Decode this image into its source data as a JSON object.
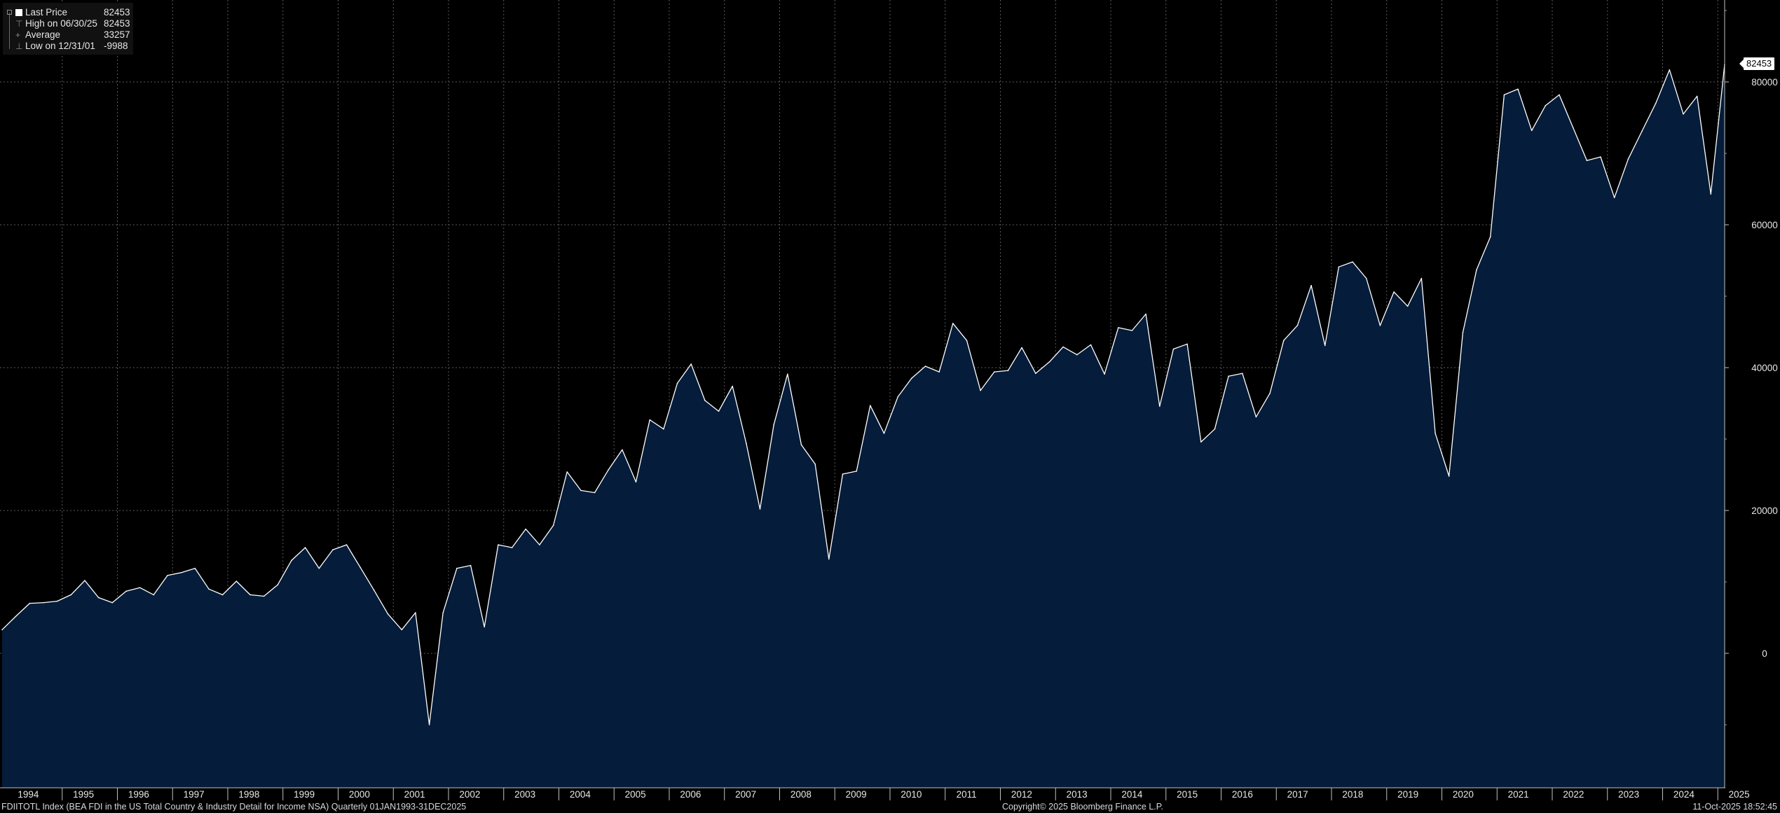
{
  "legend": {
    "rows": [
      {
        "label": "Last Price",
        "value": "82453",
        "icon": "white-square"
      },
      {
        "label": "High on 06/30/25",
        "value": "82453",
        "icon": "high-marker-icon"
      },
      {
        "label": "Average",
        "value": "33257",
        "icon": "average-marker-icon"
      },
      {
        "label": "Low on 12/31/01",
        "value": "-9988",
        "icon": "low-marker-icon"
      }
    ]
  },
  "last_price_tag": "82453",
  "footer": {
    "left": "FDIITOTL Index (BEA FDI in the US Total Country & Industry Detail for Income NSA) Quarterly 01JAN1993-31DEC2025",
    "center": "Copyright© 2025 Bloomberg Finance L.P.",
    "right": "11-Oct-2025 18:52:45"
  },
  "colors": {
    "background": "#000000",
    "area_fill": "#051c3b",
    "line": "#ffffff",
    "grid": "#5a5a5a",
    "text": "#e6e6e6"
  },
  "chart_data": {
    "type": "area",
    "title": "",
    "xlabel": "",
    "ylabel": "",
    "ylim": [
      -19000,
      91000
    ],
    "yticks": [
      0,
      20000,
      40000,
      60000,
      80000
    ],
    "ytick_labels": [
      "0",
      "20000",
      "40000",
      "60000",
      "80000"
    ],
    "x_start": "1993-Q4",
    "x_end": "2025-Q2",
    "x_axis_labels": [
      "1994",
      "1995",
      "1996",
      "1997",
      "1998",
      "1999",
      "2000",
      "2001",
      "2002",
      "2003",
      "2004",
      "2005",
      "2006",
      "2007",
      "2008",
      "2009",
      "2010",
      "2011",
      "2012",
      "2013",
      "2014",
      "2015",
      "2016",
      "2017",
      "2018",
      "2019",
      "2020",
      "2021",
      "2022",
      "2023",
      "2024",
      "2025"
    ],
    "grid": true,
    "legend_position": "top-left",
    "series": [
      {
        "name": "Last Price",
        "values": [
          3300,
          5200,
          7000,
          7100,
          7300,
          8200,
          10200,
          7800,
          7100,
          8700,
          9200,
          8200,
          10900,
          11300,
          11900,
          9000,
          8200,
          10100,
          8200,
          8000,
          9600,
          13000,
          14800,
          11900,
          14500,
          15200,
          12000,
          8800,
          5500,
          3300,
          5700,
          -9988,
          5700,
          11900,
          12300,
          3700,
          15200,
          14800,
          17400,
          15200,
          17900,
          25400,
          22800,
          22500,
          25700,
          28500,
          24000,
          32700,
          31400,
          37800,
          40500,
          35400,
          33900,
          37400,
          29400,
          20200,
          32000,
          39100,
          29200,
          26500,
          13200,
          25100,
          25500,
          34700,
          30800,
          35900,
          38500,
          40200,
          39400,
          46200,
          43800,
          36800,
          39400,
          39600,
          42800,
          39200,
          40800,
          42900,
          41800,
          43200,
          39100,
          45600,
          45200,
          47500,
          34600,
          42600,
          43300,
          29600,
          31400,
          38800,
          39200,
          33100,
          36400,
          43800,
          45900,
          51500,
          43100,
          54100,
          54800,
          52500,
          45900,
          50600,
          48600,
          52500,
          30800,
          24800,
          44900,
          53700,
          58300,
          78200,
          79000,
          73200,
          76700,
          78200,
          73600,
          69000,
          69500,
          63800,
          69200,
          73100,
          77000,
          81700,
          75500,
          78000,
          64300,
          82453
        ]
      }
    ]
  }
}
